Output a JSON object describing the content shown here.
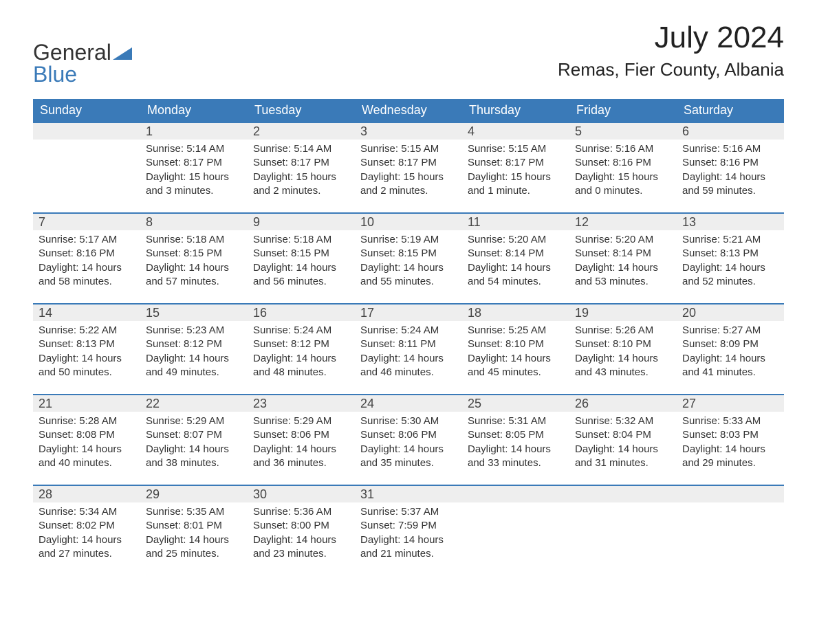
{
  "logo": {
    "text1": "General",
    "text2": "Blue"
  },
  "title": "July 2024",
  "location": "Remas, Fier County, Albania",
  "colors": {
    "header_bg": "#3a7ab8",
    "header_text": "#ffffff",
    "daynum_bg": "#eeeeee",
    "daynum_border": "#3a7ab8",
    "body_text": "#333333",
    "logo_blue": "#3a7ab8"
  },
  "dayNames": [
    "Sunday",
    "Monday",
    "Tuesday",
    "Wednesday",
    "Thursday",
    "Friday",
    "Saturday"
  ],
  "weeks": [
    [
      null,
      {
        "n": "1",
        "sunrise": "5:14 AM",
        "sunset": "8:17 PM",
        "daylight": "15 hours and 3 minutes."
      },
      {
        "n": "2",
        "sunrise": "5:14 AM",
        "sunset": "8:17 PM",
        "daylight": "15 hours and 2 minutes."
      },
      {
        "n": "3",
        "sunrise": "5:15 AM",
        "sunset": "8:17 PM",
        "daylight": "15 hours and 2 minutes."
      },
      {
        "n": "4",
        "sunrise": "5:15 AM",
        "sunset": "8:17 PM",
        "daylight": "15 hours and 1 minute."
      },
      {
        "n": "5",
        "sunrise": "5:16 AM",
        "sunset": "8:16 PM",
        "daylight": "15 hours and 0 minutes."
      },
      {
        "n": "6",
        "sunrise": "5:16 AM",
        "sunset": "8:16 PM",
        "daylight": "14 hours and 59 minutes."
      }
    ],
    [
      {
        "n": "7",
        "sunrise": "5:17 AM",
        "sunset": "8:16 PM",
        "daylight": "14 hours and 58 minutes."
      },
      {
        "n": "8",
        "sunrise": "5:18 AM",
        "sunset": "8:15 PM",
        "daylight": "14 hours and 57 minutes."
      },
      {
        "n": "9",
        "sunrise": "5:18 AM",
        "sunset": "8:15 PM",
        "daylight": "14 hours and 56 minutes."
      },
      {
        "n": "10",
        "sunrise": "5:19 AM",
        "sunset": "8:15 PM",
        "daylight": "14 hours and 55 minutes."
      },
      {
        "n": "11",
        "sunrise": "5:20 AM",
        "sunset": "8:14 PM",
        "daylight": "14 hours and 54 minutes."
      },
      {
        "n": "12",
        "sunrise": "5:20 AM",
        "sunset": "8:14 PM",
        "daylight": "14 hours and 53 minutes."
      },
      {
        "n": "13",
        "sunrise": "5:21 AM",
        "sunset": "8:13 PM",
        "daylight": "14 hours and 52 minutes."
      }
    ],
    [
      {
        "n": "14",
        "sunrise": "5:22 AM",
        "sunset": "8:13 PM",
        "daylight": "14 hours and 50 minutes."
      },
      {
        "n": "15",
        "sunrise": "5:23 AM",
        "sunset": "8:12 PM",
        "daylight": "14 hours and 49 minutes."
      },
      {
        "n": "16",
        "sunrise": "5:24 AM",
        "sunset": "8:12 PM",
        "daylight": "14 hours and 48 minutes."
      },
      {
        "n": "17",
        "sunrise": "5:24 AM",
        "sunset": "8:11 PM",
        "daylight": "14 hours and 46 minutes."
      },
      {
        "n": "18",
        "sunrise": "5:25 AM",
        "sunset": "8:10 PM",
        "daylight": "14 hours and 45 minutes."
      },
      {
        "n": "19",
        "sunrise": "5:26 AM",
        "sunset": "8:10 PM",
        "daylight": "14 hours and 43 minutes."
      },
      {
        "n": "20",
        "sunrise": "5:27 AM",
        "sunset": "8:09 PM",
        "daylight": "14 hours and 41 minutes."
      }
    ],
    [
      {
        "n": "21",
        "sunrise": "5:28 AM",
        "sunset": "8:08 PM",
        "daylight": "14 hours and 40 minutes."
      },
      {
        "n": "22",
        "sunrise": "5:29 AM",
        "sunset": "8:07 PM",
        "daylight": "14 hours and 38 minutes."
      },
      {
        "n": "23",
        "sunrise": "5:29 AM",
        "sunset": "8:06 PM",
        "daylight": "14 hours and 36 minutes."
      },
      {
        "n": "24",
        "sunrise": "5:30 AM",
        "sunset": "8:06 PM",
        "daylight": "14 hours and 35 minutes."
      },
      {
        "n": "25",
        "sunrise": "5:31 AM",
        "sunset": "8:05 PM",
        "daylight": "14 hours and 33 minutes."
      },
      {
        "n": "26",
        "sunrise": "5:32 AM",
        "sunset": "8:04 PM",
        "daylight": "14 hours and 31 minutes."
      },
      {
        "n": "27",
        "sunrise": "5:33 AM",
        "sunset": "8:03 PM",
        "daylight": "14 hours and 29 minutes."
      }
    ],
    [
      {
        "n": "28",
        "sunrise": "5:34 AM",
        "sunset": "8:02 PM",
        "daylight": "14 hours and 27 minutes."
      },
      {
        "n": "29",
        "sunrise": "5:35 AM",
        "sunset": "8:01 PM",
        "daylight": "14 hours and 25 minutes."
      },
      {
        "n": "30",
        "sunrise": "5:36 AM",
        "sunset": "8:00 PM",
        "daylight": "14 hours and 23 minutes."
      },
      {
        "n": "31",
        "sunrise": "5:37 AM",
        "sunset": "7:59 PM",
        "daylight": "14 hours and 21 minutes."
      },
      null,
      null,
      null
    ]
  ],
  "labels": {
    "sunrise": "Sunrise:",
    "sunset": "Sunset:",
    "daylight": "Daylight:"
  }
}
